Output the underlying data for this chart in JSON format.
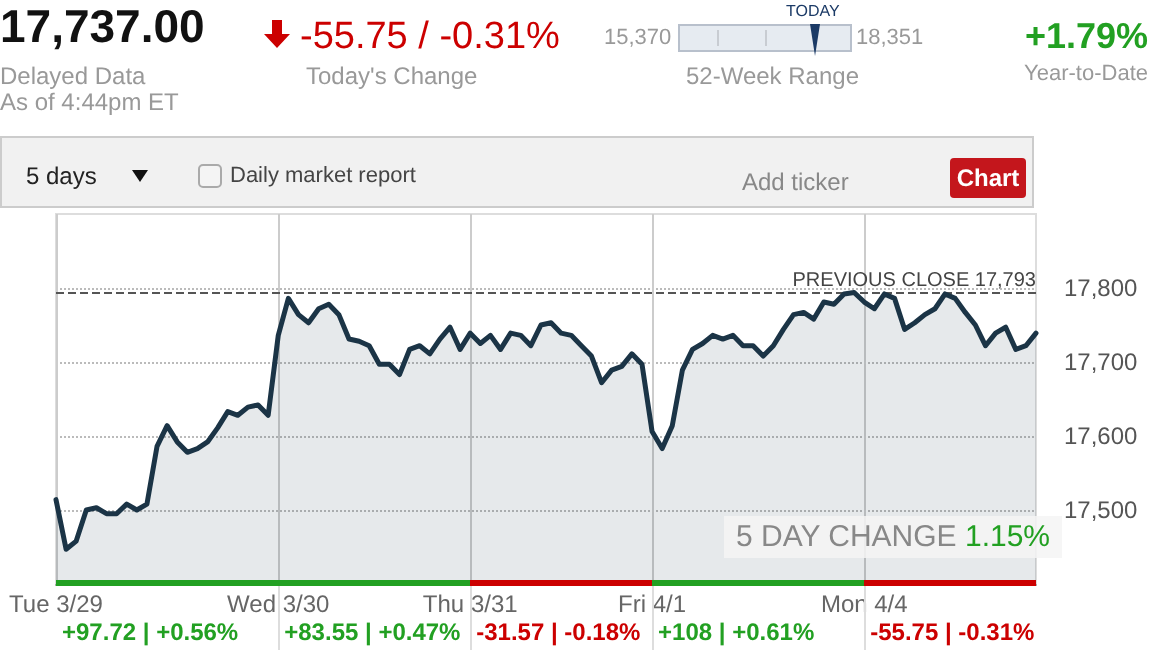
{
  "chart_data": {
    "type": "area",
    "title": "17,737.00",
    "annotations": [
      "Delayed Data",
      "As of 4:44pm ET",
      "-55.75 / -0.31%",
      "Today's Change",
      "15,370",
      "18,351",
      "TODAY",
      "52-Week Range",
      "+1.79%",
      "Year-to-Date",
      "5 days",
      "Daily market report",
      "Add ticker",
      "Chart",
      "5 DAY CHANGE",
      "1.15%",
      "+97.72 | +0.56%",
      "+83.55 | +0.47%",
      "-31.57 | -0.18%",
      "+108 | +0.61%",
      "-55.75 | -0.31%"
    ],
    "categories": [
      "Tue 3/29",
      null,
      null,
      null,
      null,
      null,
      null,
      null,
      null,
      null,
      null,
      null,
      null,
      null,
      null,
      null,
      null,
      null,
      null,
      null,
      null,
      null,
      "Wed 3/30",
      null,
      null,
      null,
      null,
      null,
      null,
      null,
      null,
      null,
      null,
      null,
      null,
      null,
      null,
      null,
      null,
      null,
      null,
      "Thu 3/31",
      null,
      null,
      null,
      null,
      null,
      null,
      null,
      null,
      null,
      null,
      null,
      null,
      null,
      null,
      null,
      null,
      null,
      "Fri 4/1",
      null,
      null,
      null,
      null,
      null,
      null,
      null,
      null,
      null,
      null,
      null,
      null,
      null,
      null,
      null,
      null,
      null,
      null,
      null,
      null,
      "Mon 4/4",
      null,
      null,
      null,
      null,
      null,
      null,
      null,
      null,
      null,
      null,
      null,
      null,
      null,
      null,
      null,
      null,
      null
    ],
    "values": [
      17514,
      17447,
      17458,
      17500,
      17503,
      17495,
      17495,
      17508,
      17500,
      17508,
      17586,
      17614,
      17592,
      17578,
      17583,
      17592,
      17611,
      17633,
      17628,
      17639,
      17642,
      17628,
      17736,
      17786,
      17764,
      17753,
      17772,
      17778,
      17764,
      17731,
      17728,
      17722,
      17697,
      17697,
      17683,
      17717,
      17722,
      17711,
      17731,
      17747,
      17717,
      17739,
      17725,
      17736,
      17717,
      17739,
      17736,
      17722,
      17750,
      17753,
      17739,
      17736,
      17722,
      17708,
      17672,
      17689,
      17694,
      17711,
      17697,
      17606,
      17583,
      17614,
      17689,
      17717,
      17725,
      17736,
      17731,
      17736,
      17722,
      17722,
      17708,
      17722,
      17744,
      17764,
      17767,
      17758,
      17781,
      17778,
      17792,
      17794,
      17781,
      17772,
      17792,
      17786,
      17744,
      17753,
      17764,
      17772,
      17792,
      17786,
      17767,
      17750,
      17722,
      17739,
      17747,
      17717,
      17722,
      17739
    ],
    "color": "#1b3446",
    "ylim": [
      17400,
      17900
    ],
    "yticks": [
      {
        "value": 17500,
        "label": "17,500"
      },
      {
        "value": 17600,
        "label": "17,600"
      },
      {
        "value": 17700,
        "label": "17,700"
      },
      {
        "value": 17800,
        "label": "17,800"
      }
    ],
    "grid": true,
    "ref_lines": [
      {
        "axis": "y",
        "value": 17793,
        "label": "PREVIOUS CLOSE 17,793",
        "line_style": "dashed",
        "color": "#555555"
      }
    ]
  }
}
